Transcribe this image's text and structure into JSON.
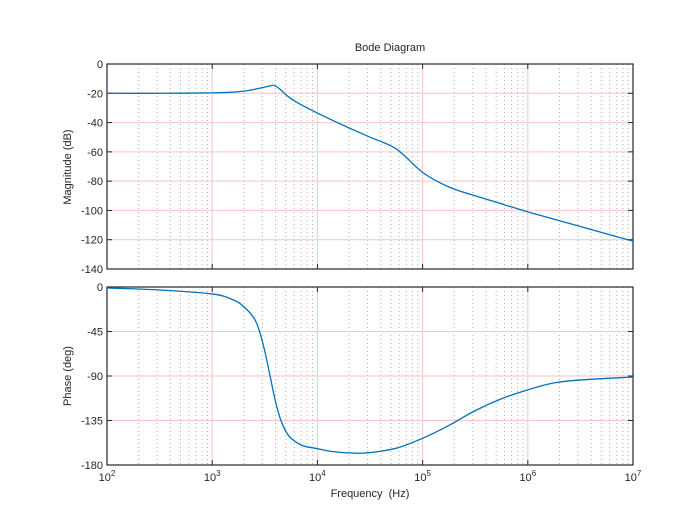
{
  "chart_data": [
    {
      "type": "line",
      "title": "Bode Diagram",
      "ylabel": "Magnitude (dB)",
      "xscale": "log",
      "xlim": [
        100,
        10000000
      ],
      "ylim": [
        -140,
        0
      ],
      "yticks": [
        0,
        -20,
        -40,
        -60,
        -80,
        -100,
        -120,
        -140
      ],
      "grid": true,
      "color": "#0072BD",
      "x": [
        100,
        316,
        1000,
        1585,
        2000,
        2512,
        3162,
        3715,
        3981,
        4467,
        5012,
        6310,
        10000,
        17783,
        31623,
        56234,
        100000,
        177828,
        316228,
        562341,
        1000000,
        1778279,
        3162278,
        5623413,
        10000000
      ],
      "y": [
        -20,
        -20,
        -19.7,
        -19.2,
        -18.5,
        -17.3,
        -15.8,
        -14.6,
        -15,
        -17.5,
        -21,
        -26,
        -33.5,
        -42,
        -50,
        -58,
        -74,
        -84,
        -90,
        -95.5,
        -101,
        -106,
        -111,
        -116,
        -121
      ]
    },
    {
      "type": "line",
      "ylabel": "Phase (deg)",
      "xlabel": "Frequency  (Hz)",
      "xscale": "log",
      "xlim": [
        100,
        10000000
      ],
      "xticks": [
        "10^2",
        "10^3",
        "10^4",
        "10^5",
        "10^6",
        "10^7"
      ],
      "ylim": [
        -180,
        0
      ],
      "yticks": [
        0,
        -45,
        -90,
        -135,
        -180
      ],
      "grid": true,
      "color": "#0072BD",
      "x": [
        100,
        316,
        1000,
        1585,
        2000,
        2512,
        2818,
        3162,
        3548,
        3981,
        4467,
        5012,
        5623,
        7079,
        10000,
        14125,
        22387,
        31623,
        56234,
        100000,
        177828,
        316228,
        562341,
        1000000,
        1778279,
        3162278,
        10000000
      ],
      "y": [
        -1,
        -3,
        -7,
        -13,
        -20,
        -32,
        -45,
        -65,
        -90,
        -115,
        -134,
        -146,
        -153,
        -160,
        -163.5,
        -166.5,
        -168,
        -167.5,
        -163,
        -153,
        -140,
        -125,
        -113,
        -104,
        -97,
        -94,
        -91
      ]
    }
  ]
}
